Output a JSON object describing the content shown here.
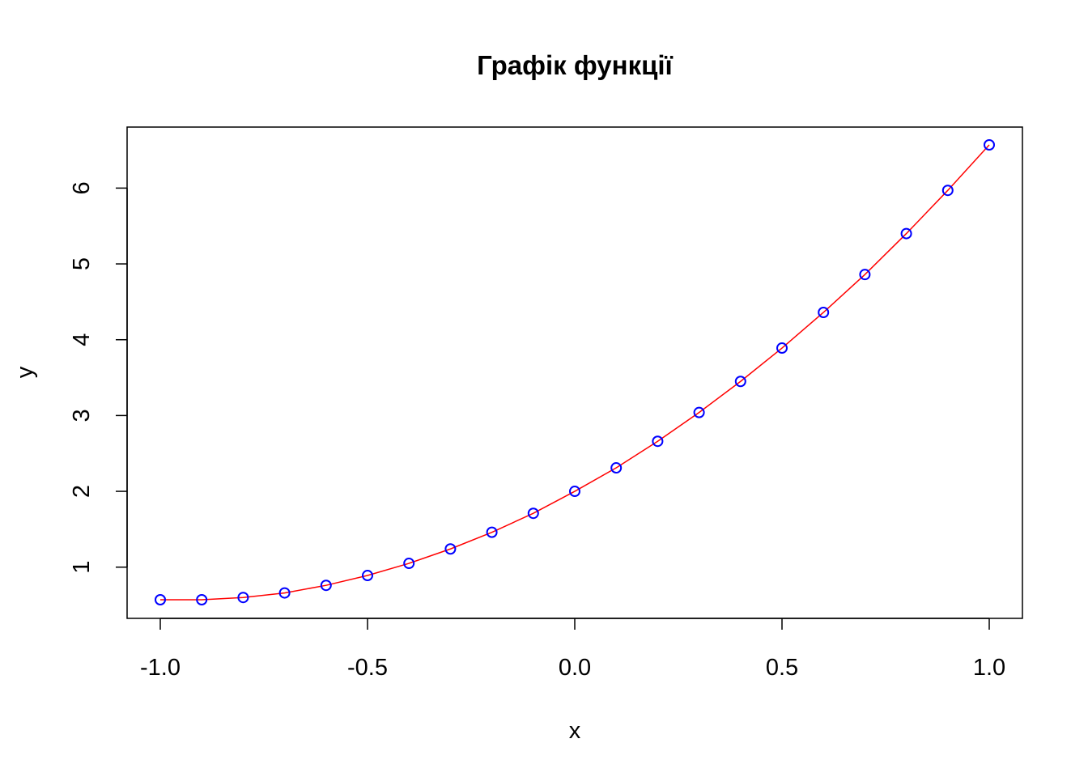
{
  "chart_data": {
    "type": "line",
    "title": "Графік функції",
    "xlabel": "x",
    "ylabel": "y",
    "xlim": [
      -1.0,
      1.0
    ],
    "ylim": [
      0.57,
      6.57
    ],
    "x_ticks": [
      "-1.0",
      "-0.5",
      "0.0",
      "0.5",
      "1.0"
    ],
    "x_tick_values": [
      -1.0,
      -0.5,
      0.0,
      0.5,
      1.0
    ],
    "y_ticks": [
      "1",
      "2",
      "3",
      "4",
      "5",
      "6"
    ],
    "y_tick_values": [
      1,
      2,
      3,
      4,
      5,
      6
    ],
    "grid": false,
    "colors": {
      "line": "#ff0000",
      "points": "#0000ff",
      "frame": "#000000"
    },
    "series": [
      {
        "x": [
          -1.0,
          -0.9,
          -0.8,
          -0.7,
          -0.6,
          -0.5,
          -0.4,
          -0.3,
          -0.2,
          -0.1,
          0.0,
          0.1,
          0.2,
          0.3,
          0.4,
          0.5,
          0.6,
          0.7,
          0.8,
          0.9,
          1.0
        ],
        "y": [
          0.57,
          0.57,
          0.6,
          0.66,
          0.76,
          0.89,
          1.05,
          1.24,
          1.46,
          1.71,
          2.0,
          2.31,
          2.66,
          3.04,
          3.45,
          3.89,
          4.36,
          4.86,
          5.4,
          5.97,
          6.57
        ]
      }
    ]
  }
}
